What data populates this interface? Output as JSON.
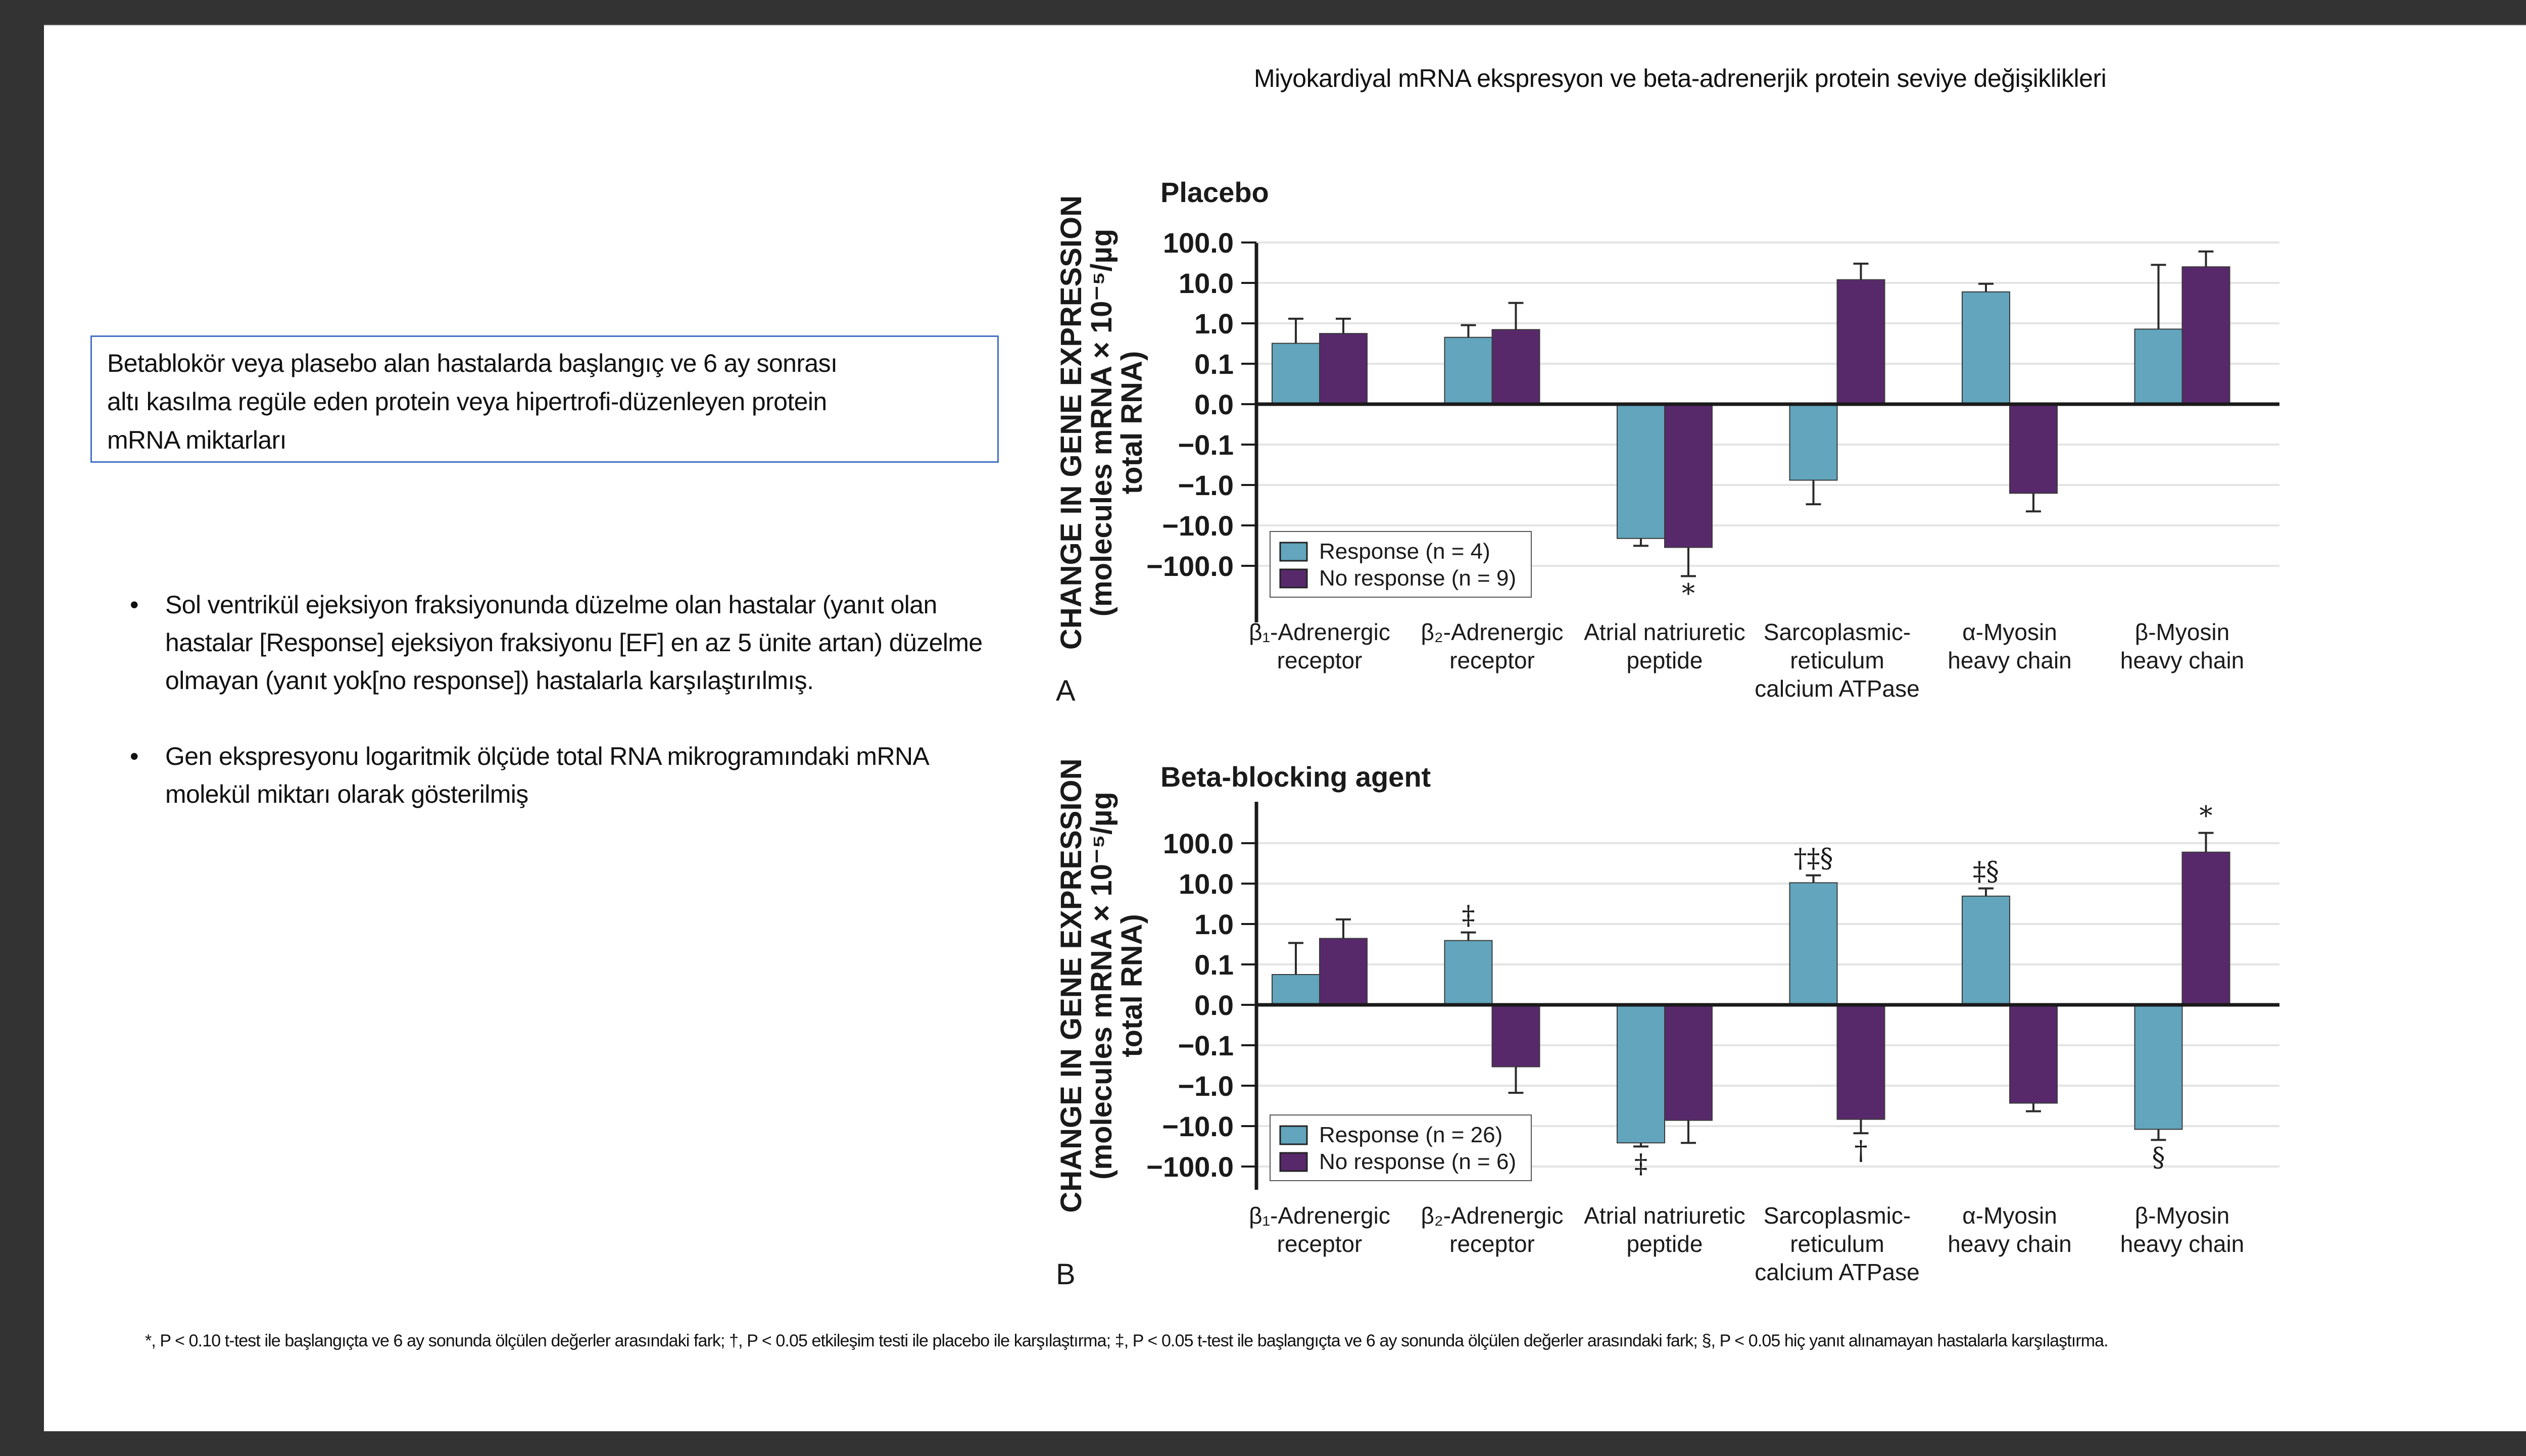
{
  "slide": {
    "title": "Miyokardiyal mRNA ekspresyon ve beta-adrenerjik protein seviye değişiklikleri",
    "info_box": {
      "lines": [
        "Betablokör veya plasebo alan hastalarda başlangıç  ve 6 ay sonrası",
        "altı kasılma regüle eden protein veya hipertrofi-düzenleyen protein",
        "mRNA miktarları"
      ]
    },
    "bullets": [
      {
        "symbol": "•",
        "text": "Sol ventrikül ejeksiyon fraksiyonunda düzelme olan hastalar (yanıt olan hastalar [Response] ejeksiyon fraksiyonu [EF] en az 5 ünite artan) düzelme olmayan (yanıt yok[no response]) hastalarla karşılaştırılmış."
      },
      {
        "symbol": "•",
        "text": "Gen ekspresyonu logaritmik ölçüde total RNA mikrogramındaki mRNA molekül miktarı olarak gösterilmiş"
      }
    ],
    "footnote": "*, P < 0.10 t-test ile başlangıçta ve 6 ay sonunda ölçülen değerler arasındaki fark; †, P < 0.05 etkileşim testi ile placebo ile karşılaştırma; ‡, P < 0.05 t-test ile başlangıçta ve 6 ay sonunda ölçülen değerler arasındaki fark; §, P < 0.05 hiç yanıt alınamayan hastalarla karşılaştırma."
  },
  "colors": {
    "response": "#62a5bd",
    "no_response": "#57296b",
    "gridline": "#e4e4e4",
    "axis": "#1a1a1a",
    "info_box_border": "#4472c4"
  },
  "chart_data": [
    {
      "type": "bar",
      "panel_letter": "A",
      "title": "Placebo",
      "ylabel_line1": "CHANGE IN GENE EXPRESSION",
      "ylabel_line2": "(molecules mRNA × 10⁻⁵/µg",
      "ylabel_line3": "total RNA)",
      "yscale": "symmetric-log",
      "yticks": [
        "100.0",
        "10.0",
        "1.0",
        "0.1",
        "0.0",
        "−0.1",
        "−1.0",
        "−10.0",
        "−100.0"
      ],
      "ytick_values": [
        100,
        10,
        1,
        0.1,
        0,
        -0.1,
        -1,
        -10,
        -100
      ],
      "ylim": [
        -100,
        100
      ],
      "grid": true,
      "legend_position": "bottom-left",
      "categories": [
        [
          "β₁-Adrenergic",
          "receptor"
        ],
        [
          "β₂-Adrenergic",
          "receptor"
        ],
        [
          "Atrial natriuretic",
          "peptide"
        ],
        [
          "Sarcoplasmic-",
          "reticulum",
          "calcium ATPase"
        ],
        [
          "α-Myosin",
          "heavy chain"
        ],
        [
          "β-Myosin",
          "heavy chain"
        ]
      ],
      "series": [
        {
          "name": "Response (n = 4)",
          "key": "response",
          "values": [
            0.32,
            0.45,
            -21,
            -0.76,
            6.0,
            0.72
          ],
          "error_tops": [
            1.3,
            0.9,
            -32,
            -3.0,
            9.5,
            28
          ],
          "annotations": [
            "",
            "",
            "",
            "",
            "",
            ""
          ]
        },
        {
          "name": "No response (n = 9)",
          "key": "no_response",
          "values": [
            0.56,
            0.7,
            -35,
            12,
            -1.6,
            25
          ],
          "error_tops": [
            1.3,
            3.2,
            -180,
            30,
            -4.5,
            60
          ],
          "annotations": [
            "",
            "",
            "*",
            "",
            "",
            ""
          ]
        }
      ]
    },
    {
      "type": "bar",
      "panel_letter": "B",
      "title": "Beta-blocking agent",
      "ylabel_line1": "CHANGE IN GENE EXPRESSION",
      "ylabel_line2": "(molecules mRNA × 10⁻⁵/µg",
      "ylabel_line3": "total RNA)",
      "yscale": "symmetric-log",
      "yticks": [
        "100.0",
        "10.0",
        "1.0",
        "0.1",
        "0.0",
        "−0.1",
        "−1.0",
        "−10.0",
        "−100.0"
      ],
      "ytick_values": [
        100,
        10,
        1,
        0.1,
        0,
        -0.1,
        -1,
        -10,
        -100
      ],
      "ylim": [
        -100,
        100
      ],
      "grid": true,
      "legend_position": "bottom-left",
      "categories": [
        [
          "β₁-Adrenergic",
          "receptor"
        ],
        [
          "β₂-Adrenergic",
          "receptor"
        ],
        [
          "Atrial natriuretic",
          "peptide"
        ],
        [
          "Sarcoplasmic-",
          "reticulum",
          "calcium ATPase"
        ],
        [
          "α-Myosin",
          "heavy chain"
        ],
        [
          "β-Myosin",
          "heavy chain"
        ]
      ],
      "series": [
        {
          "name": "Response (n = 26)",
          "key": "response",
          "values": [
            0.075,
            0.39,
            -26,
            10.5,
            4.9,
            -12
          ],
          "error_tops": [
            0.34,
            0.62,
            -32,
            16,
            7.6,
            -22
          ],
          "annotations": [
            "",
            "‡",
            "‡",
            "†‡§",
            "‡§",
            "§"
          ]
        },
        {
          "name": "No response (n = 6)",
          "key": "no_response",
          "values": [
            0.44,
            -0.34,
            -7.2,
            -6.8,
            -2.7,
            60
          ],
          "error_tops": [
            1.3,
            -1.5,
            -26,
            -15,
            -4.3,
            180
          ],
          "annotations": [
            "",
            "",
            "",
            "†",
            "",
            "*"
          ]
        }
      ]
    }
  ]
}
